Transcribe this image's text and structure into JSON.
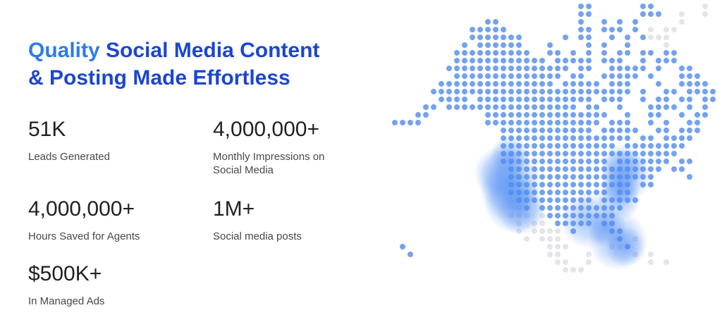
{
  "heading": {
    "highlight": "Quality",
    "line1_rest": " Social Media Content",
    "line2": "& Posting Made Effortless",
    "color_highlight": "#2e7ce8",
    "color_main": "#1b46cf"
  },
  "stats": [
    {
      "value": "51K",
      "label": "Leads Generated"
    },
    {
      "value": "4,000,000+",
      "label": "Monthly Impressions on Social Media"
    },
    {
      "value": "4,000,000+",
      "label": "Hours Saved for Agents"
    },
    {
      "value": "1M+",
      "label": "Social media posts"
    },
    {
      "value": "$500K+",
      "label": "In Managed Ads"
    }
  ],
  "map": {
    "description": "dot-matrix map of North America",
    "dot_color_active": "#74a2f0",
    "dot_color_inactive": "#e3e5e9",
    "glow_color": "#4d8bf4",
    "grid": [
      ".........................bb......bb......g..",
      ".........................bb......bbb..g..g..",
      ".............bb..........b..b.b.b.....g.....",
      "...........bbbbb.........bb.bbb.b.g.gg......",
      "...........bbbbbbb.....b.bb..b.b.bggg.......",
      "..........b.bbbbbb...b....b.b..b....g.......",
      ".........bbbbbbbbbb..bb.b.b.b.bb.bb.bb......",
      ".........bbbbbbbbbbbb.bbbbb.bbb..b.bbb......",
      "........bbbbbbbbbbbbbbbb.bb..bbbbb.b..bb....",
      ".........bbbbbbbbbbbbbb.bb..bbbbb.b...bbb...",
      ".......bbbbbbbbbbbbbbb.bbbbb.bbb...b..bbbb..",
      "......bbbbbbbbbbbbbbbbbbbbbbbbbb.b..bb.bbbb.",
      ".......bbbb.bbbbbbbbbbbbbbb.bbb..b.bb.bb.bb.",
      ".....bb.bbbbbbbbbbbbbbbbb.bb..b...bbbb.b.b..",
      "....bb.......bbbbbbbbbbbbbbbb..b..bb..b.bb..",
      ".bbbb........bbbbbbbbbbbbbbb.bbb..b.b..bb...",
      "...............bbbbbbbbbbbb.bbbbb..bb.bbb...",
      "...............bbbbbbbbbbbbbbbbb.bb.bbbb....",
      "...............bbbbbbbbbbbbbbb.bbbbbbbb.....",
      "...............bbbbbbbbbbbbbbbbbbbbbbb......",
      "...............bbbbbbbbbbbbbb.bbbbbbb.bb....",
      "................bbbbbbbbbbbbbbbbbbbb.bb.....",
      "................bbbbbbbbbbbbbbbbbbb....b....",
      "................bbbbbbbbbbbbbbbb.bb.........",
      "................bbbbbbbbbbbbb.bb............",
      ".................bbbbbbbbbb.bbbbb...........",
      ".................gb.bbbbbbbbbbb.............",
      "................ggg.gbbbbbbbbb..............",
      ".................g.gg.bbbbb.bb..............",
      ".................g.gggg.b....bb.............",
      "..................g.ggg.......b.g...........",
      "..b..................ggg.....ggb............",
      "...b.................gg...g.....g.g.........",
      "......................gg..g.......g.g.......",
      ".......................ggg..................",
      "............................................"
    ],
    "glows": [
      {
        "col": 15.8,
        "row": 19.3,
        "scale": 1.0
      },
      {
        "col": 14.6,
        "row": 21.4,
        "scale": 1.3
      },
      {
        "col": 15.8,
        "row": 22.3,
        "scale": 1.6
      },
      {
        "col": 15.6,
        "row": 24.0,
        "scale": 1.4
      },
      {
        "col": 16.4,
        "row": 25.4,
        "scale": 1.5
      },
      {
        "col": 17.3,
        "row": 26.4,
        "scale": 1.2
      },
      {
        "col": 30.3,
        "row": 20.6,
        "scale": 1.1
      },
      {
        "col": 30.8,
        "row": 21.8,
        "scale": 1.3
      },
      {
        "col": 30.1,
        "row": 23.3,
        "scale": 1.0
      },
      {
        "col": 29.8,
        "row": 24.9,
        "scale": 1.1
      },
      {
        "col": 26.0,
        "row": 27.6,
        "scale": 1.4
      },
      {
        "col": 28.4,
        "row": 28.5,
        "scale": 1.0
      },
      {
        "col": 29.7,
        "row": 30.2,
        "scale": 1.5
      },
      {
        "col": 30.7,
        "row": 31.0,
        "scale": 1.0
      }
    ]
  }
}
